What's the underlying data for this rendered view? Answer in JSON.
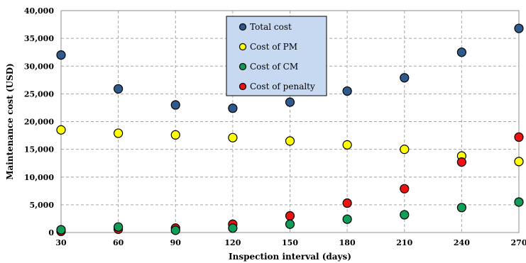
{
  "chart_data": {
    "type": "scatter",
    "title": "",
    "xlabel": "Inspection interval  (days)",
    "ylabel": "Maintenance cost (USD)",
    "x": [
      30,
      60,
      90,
      120,
      150,
      180,
      210,
      240,
      270
    ],
    "x_ticks": [
      "30",
      "60",
      "90",
      "120",
      "150",
      "180",
      "210",
      "240",
      "270"
    ],
    "y_ticks": [
      "0",
      "5,000",
      "10,000",
      "15,000",
      "20,000",
      "25,000",
      "30,000",
      "35,000",
      "40,000"
    ],
    "xlim": [
      30,
      270
    ],
    "ylim": [
      0,
      40000
    ],
    "grid": true,
    "legend_position": "top-center",
    "series": [
      {
        "name": "Total cost",
        "color": "#2e5a8c",
        "values": [
          32000,
          25900,
          23000,
          22400,
          23500,
          25500,
          27900,
          32500,
          36800
        ]
      },
      {
        "name": "Cost of PM",
        "color": "#ffff00",
        "values": [
          18500,
          17900,
          17600,
          17100,
          16500,
          15800,
          15000,
          13800,
          12800
        ]
      },
      {
        "name": "Cost of CM",
        "color": "#0f9d58",
        "values": [
          500,
          1000,
          400,
          800,
          1500,
          2400,
          3200,
          4500,
          5500
        ]
      },
      {
        "name": "Cost of penalty",
        "color": "#ee1111",
        "values": [
          200,
          600,
          800,
          1500,
          3000,
          5300,
          7900,
          12700,
          17200
        ]
      }
    ]
  }
}
